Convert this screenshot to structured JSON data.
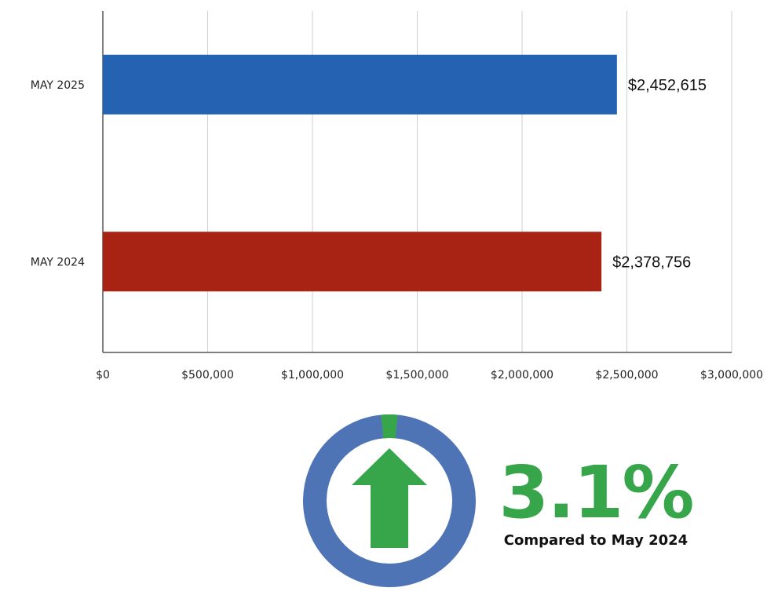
{
  "chart_data": {
    "type": "bar",
    "orientation": "horizontal",
    "categories": [
      "MAY 2025",
      "MAY 2024"
    ],
    "values": [
      2452615,
      2378756
    ],
    "value_labels": [
      "$2,452,615",
      "$2,378,756"
    ],
    "colors": [
      "#2563b2",
      "#a82314"
    ],
    "xlim": [
      0,
      3000000
    ],
    "x_ticks": [
      0,
      500000,
      1000000,
      1500000,
      2000000,
      2500000,
      3000000
    ],
    "x_tick_labels": [
      "$0",
      "$500,000",
      "$1,000,000",
      "$1,500,000",
      "$2,000,000",
      "$2,500,000",
      "$3,000,000"
    ],
    "grid": true,
    "title": "",
    "xlabel": "",
    "ylabel": ""
  },
  "indicator": {
    "change_fraction": 0.031,
    "percent_text": "3.1%",
    "caption": "Compared to May 2024",
    "direction": "up",
    "arrow_icon": "arrow-up-icon",
    "ring_color": "#4f74b6",
    "accent_color": "#37a64a"
  }
}
